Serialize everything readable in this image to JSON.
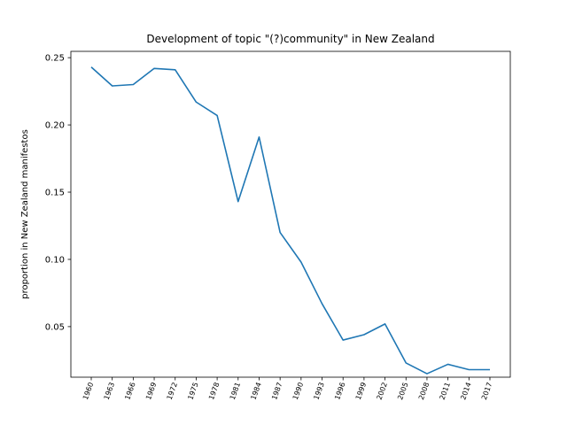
{
  "chart_data": {
    "type": "line",
    "title": "Development of topic \"(?)community\" in New Zealand",
    "xlabel": "",
    "ylabel": "proportion in New Zealand manifestos",
    "categories": [
      "1960",
      "1963",
      "1966",
      "1969",
      "1972",
      "1975",
      "1978",
      "1981",
      "1984",
      "1987",
      "1990",
      "1993",
      "1996",
      "1999",
      "2002",
      "2005",
      "2008",
      "2011",
      "2014",
      "2017"
    ],
    "series": [
      {
        "values": [
          0.243,
          0.229,
          0.23,
          0.242,
          0.241,
          0.217,
          0.207,
          0.143,
          0.191,
          0.12,
          0.098,
          0.067,
          0.04,
          0.044,
          0.052,
          0.023,
          0.015,
          0.022,
          0.018,
          0.018
        ],
        "color": "#1f77b4"
      }
    ],
    "ylim": [
      0.0124,
      0.2547
    ],
    "yticks": [
      0.05,
      0.1,
      0.15,
      0.2,
      0.25
    ],
    "ytick_labels": [
      "0.05",
      "0.10",
      "0.15",
      "0.20",
      "0.25"
    ],
    "grid": false,
    "legend": false
  }
}
